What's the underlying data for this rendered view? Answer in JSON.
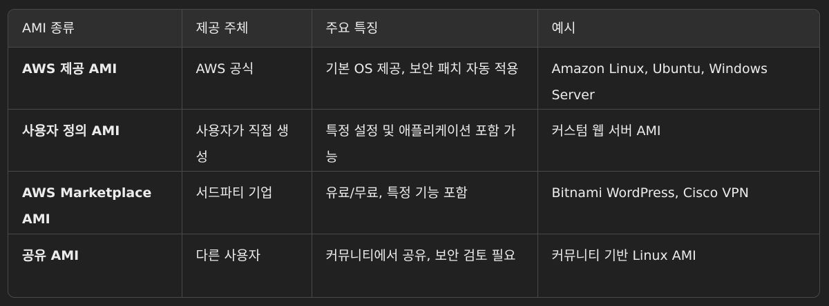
{
  "table": {
    "headers": [
      "AMI 종류",
      "제공 주체",
      "주요 특징",
      "예시"
    ],
    "rows": [
      [
        "AWS 제공 AMI",
        "AWS 공식",
        "기본 OS 제공, 보안 패치 자동 적용",
        "Amazon Linux, Ubuntu, Windows Server"
      ],
      [
        "사용자 정의 AMI",
        "사용자가 직접 생성",
        "특정 설정 및 애플리케이션 포함 가능",
        "커스텀 웹 서버 AMI"
      ],
      [
        "AWS Marketplace AMI",
        "서드파티 기업",
        "유료/무료, 특정 기능 포함",
        "Bitnami WordPress, Cisco VPN"
      ],
      [
        "공유 AMI",
        "다른 사용자",
        "커뮤니티에서 공유, 보안 검토 필요",
        "커뮤니티 기반 Linux AMI"
      ]
    ]
  }
}
